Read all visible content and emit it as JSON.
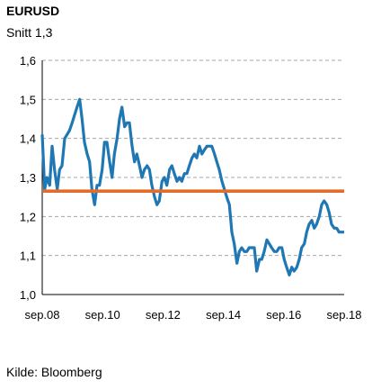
{
  "chart_data": {
    "type": "line",
    "title": "EURUSD",
    "subtitle": "Snitt 1,3",
    "source": "Kilde: Bloomberg",
    "ylim": [
      1.0,
      1.6
    ],
    "y_ticks": [
      "1,0",
      "1,1",
      "1,2",
      "1,3",
      "1,4",
      "1,5",
      "1,6"
    ],
    "x_ticks": [
      "sep.08",
      "sep.10",
      "sep.12",
      "sep.14",
      "sep.16",
      "sep.18"
    ],
    "xlim": [
      2008.67,
      2018.75
    ],
    "grid": true,
    "series": [
      {
        "color": "#1f77b4",
        "points": [
          [
            2008.67,
            1.41
          ],
          [
            2008.75,
            1.27
          ],
          [
            2008.83,
            1.3
          ],
          [
            2008.92,
            1.28
          ],
          [
            2009.0,
            1.38
          ],
          [
            2009.08,
            1.32
          ],
          [
            2009.17,
            1.27
          ],
          [
            2009.25,
            1.32
          ],
          [
            2009.33,
            1.33
          ],
          [
            2009.42,
            1.4
          ],
          [
            2009.5,
            1.41
          ],
          [
            2009.58,
            1.42
          ],
          [
            2009.67,
            1.44
          ],
          [
            2009.75,
            1.46
          ],
          [
            2009.83,
            1.48
          ],
          [
            2009.92,
            1.5
          ],
          [
            2010.0,
            1.45
          ],
          [
            2010.08,
            1.39
          ],
          [
            2010.17,
            1.36
          ],
          [
            2010.25,
            1.34
          ],
          [
            2010.33,
            1.27
          ],
          [
            2010.42,
            1.23
          ],
          [
            2010.5,
            1.28
          ],
          [
            2010.58,
            1.28
          ],
          [
            2010.67,
            1.32
          ],
          [
            2010.75,
            1.39
          ],
          [
            2010.83,
            1.39
          ],
          [
            2010.92,
            1.34
          ],
          [
            2011.0,
            1.3
          ],
          [
            2011.08,
            1.36
          ],
          [
            2011.17,
            1.4
          ],
          [
            2011.25,
            1.45
          ],
          [
            2011.33,
            1.48
          ],
          [
            2011.42,
            1.43
          ],
          [
            2011.5,
            1.44
          ],
          [
            2011.58,
            1.44
          ],
          [
            2011.67,
            1.38
          ],
          [
            2011.75,
            1.34
          ],
          [
            2011.83,
            1.36
          ],
          [
            2011.92,
            1.33
          ],
          [
            2012.0,
            1.3
          ],
          [
            2012.08,
            1.32
          ],
          [
            2012.17,
            1.33
          ],
          [
            2012.25,
            1.32
          ],
          [
            2012.33,
            1.28
          ],
          [
            2012.42,
            1.25
          ],
          [
            2012.5,
            1.23
          ],
          [
            2012.58,
            1.24
          ],
          [
            2012.67,
            1.29
          ],
          [
            2012.75,
            1.3
          ],
          [
            2012.83,
            1.28
          ],
          [
            2012.92,
            1.32
          ],
          [
            2013.0,
            1.33
          ],
          [
            2013.08,
            1.31
          ],
          [
            2013.17,
            1.29
          ],
          [
            2013.25,
            1.3
          ],
          [
            2013.33,
            1.29
          ],
          [
            2013.42,
            1.31
          ],
          [
            2013.5,
            1.31
          ],
          [
            2013.58,
            1.33
          ],
          [
            2013.67,
            1.35
          ],
          [
            2013.75,
            1.36
          ],
          [
            2013.83,
            1.35
          ],
          [
            2013.92,
            1.38
          ],
          [
            2014.0,
            1.36
          ],
          [
            2014.08,
            1.37
          ],
          [
            2014.17,
            1.38
          ],
          [
            2014.25,
            1.38
          ],
          [
            2014.33,
            1.38
          ],
          [
            2014.42,
            1.36
          ],
          [
            2014.5,
            1.34
          ],
          [
            2014.58,
            1.32
          ],
          [
            2014.67,
            1.29
          ],
          [
            2014.75,
            1.27
          ],
          [
            2014.83,
            1.25
          ],
          [
            2014.92,
            1.23
          ],
          [
            2015.0,
            1.16
          ],
          [
            2015.08,
            1.13
          ],
          [
            2015.17,
            1.08
          ],
          [
            2015.25,
            1.11
          ],
          [
            2015.33,
            1.12
          ],
          [
            2015.42,
            1.11
          ],
          [
            2015.5,
            1.11
          ],
          [
            2015.58,
            1.12
          ],
          [
            2015.67,
            1.12
          ],
          [
            2015.75,
            1.12
          ],
          [
            2015.83,
            1.06
          ],
          [
            2015.92,
            1.09
          ],
          [
            2016.0,
            1.09
          ],
          [
            2016.08,
            1.11
          ],
          [
            2016.17,
            1.14
          ],
          [
            2016.25,
            1.13
          ],
          [
            2016.33,
            1.12
          ],
          [
            2016.42,
            1.11
          ],
          [
            2016.5,
            1.11
          ],
          [
            2016.58,
            1.12
          ],
          [
            2016.67,
            1.12
          ],
          [
            2016.75,
            1.09
          ],
          [
            2016.83,
            1.07
          ],
          [
            2016.92,
            1.05
          ],
          [
            2017.0,
            1.07
          ],
          [
            2017.08,
            1.06
          ],
          [
            2017.17,
            1.07
          ],
          [
            2017.25,
            1.09
          ],
          [
            2017.33,
            1.12
          ],
          [
            2017.42,
            1.13
          ],
          [
            2017.5,
            1.16
          ],
          [
            2017.58,
            1.18
          ],
          [
            2017.67,
            1.19
          ],
          [
            2017.75,
            1.17
          ],
          [
            2017.83,
            1.18
          ],
          [
            2017.92,
            1.2
          ],
          [
            2018.0,
            1.23
          ],
          [
            2018.08,
            1.24
          ],
          [
            2018.17,
            1.23
          ],
          [
            2018.25,
            1.21
          ],
          [
            2018.33,
            1.18
          ],
          [
            2018.42,
            1.17
          ],
          [
            2018.5,
            1.17
          ],
          [
            2018.58,
            1.16
          ],
          [
            2018.67,
            1.16
          ],
          [
            2018.75,
            1.16
          ]
        ]
      },
      {
        "color": "#e36c2a",
        "points": [
          [
            2008.67,
            1.265
          ],
          [
            2018.75,
            1.265
          ]
        ]
      }
    ]
  }
}
